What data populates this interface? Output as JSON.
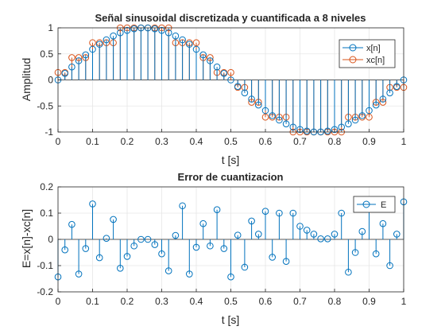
{
  "chart_data": [
    {
      "type": "stem",
      "title": "Señal sinusoidal discretizada y cuantificada a 8 niveles",
      "xlabel": "t [s]",
      "ylabel": "Amplitud",
      "xlim": [
        0,
        1
      ],
      "ylim": [
        -1,
        1
      ],
      "xticks": [
        "0",
        "0.1",
        "0.2",
        "0.3",
        "0.4",
        "0.5",
        "0.6",
        "0.7",
        "0.8",
        "0.9",
        "1"
      ],
      "yticks": [
        "-1",
        "-0.5",
        "0",
        "0.5",
        "1"
      ],
      "legend": "top-right",
      "x": [
        0,
        0.02,
        0.04,
        0.06,
        0.08,
        0.1,
        0.12,
        0.14,
        0.16,
        0.18,
        0.2,
        0.22,
        0.24,
        0.26,
        0.28,
        0.3,
        0.32,
        0.34,
        0.36,
        0.38,
        0.4,
        0.42,
        0.44,
        0.46,
        0.48,
        0.5,
        0.52,
        0.54,
        0.56,
        0.58,
        0.6,
        0.62,
        0.64,
        0.66,
        0.68,
        0.7,
        0.72,
        0.74,
        0.76,
        0.78,
        0.8,
        0.82,
        0.84,
        0.86,
        0.88,
        0.9,
        0.92,
        0.94,
        0.96,
        0.98,
        1.0
      ],
      "series": [
        {
          "name": "x[n]",
          "color": "#0072BD",
          "values": [
            0,
            0.125,
            0.249,
            0.368,
            0.482,
            0.588,
            0.685,
            0.771,
            0.844,
            0.905,
            0.951,
            0.982,
            0.998,
            0.998,
            0.982,
            0.951,
            0.905,
            0.844,
            0.771,
            0.685,
            0.588,
            0.482,
            0.368,
            0.249,
            0.125,
            0,
            -0.125,
            -0.249,
            -0.368,
            -0.482,
            -0.588,
            -0.685,
            -0.771,
            -0.844,
            -0.905,
            -0.951,
            -0.982,
            -0.998,
            -0.998,
            -0.982,
            -0.951,
            -0.905,
            -0.844,
            -0.771,
            -0.685,
            -0.588,
            -0.482,
            -0.368,
            -0.249,
            -0.125,
            0
          ]
        },
        {
          "name": "xc[n]",
          "color": "#D95319",
          "values": [
            0.143,
            0.143,
            0.429,
            0.429,
            0.429,
            0.714,
            0.714,
            0.714,
            0.714,
            1,
            1,
            1,
            1,
            1,
            1,
            1,
            1,
            0.714,
            0.714,
            0.714,
            0.714,
            0.429,
            0.429,
            0.143,
            0.143,
            0.143,
            -0.143,
            -0.143,
            -0.429,
            -0.429,
            -0.714,
            -0.714,
            -0.714,
            -0.714,
            -1,
            -1,
            -1,
            -1,
            -1,
            -1,
            -1,
            -1,
            -0.714,
            -0.714,
            -0.714,
            -0.714,
            -0.429,
            -0.429,
            -0.143,
            -0.143,
            -0.143
          ]
        }
      ]
    },
    {
      "type": "stem",
      "title": "Error de cuantizacion",
      "xlabel": "t [s]",
      "ylabel": "E=x[n]-xc[n]",
      "xlim": [
        0,
        1
      ],
      "ylim": [
        -0.2,
        0.2
      ],
      "xticks": [
        "0",
        "0.1",
        "0.2",
        "0.3",
        "0.4",
        "0.5",
        "0.6",
        "0.7",
        "0.8",
        "0.9",
        "1"
      ],
      "yticks": [
        "-0.2",
        "-0.1",
        "0",
        "0.1",
        "0.2"
      ],
      "legend": "top-right",
      "x": [
        0,
        0.02,
        0.04,
        0.06,
        0.08,
        0.1,
        0.12,
        0.14,
        0.16,
        0.18,
        0.2,
        0.22,
        0.24,
        0.26,
        0.28,
        0.3,
        0.32,
        0.34,
        0.36,
        0.38,
        0.4,
        0.42,
        0.44,
        0.46,
        0.48,
        0.5,
        0.52,
        0.54,
        0.56,
        0.58,
        0.6,
        0.62,
        0.64,
        0.66,
        0.68,
        0.7,
        0.72,
        0.74,
        0.76,
        0.78,
        0.8,
        0.82,
        0.84,
        0.86,
        0.88,
        0.9,
        0.92,
        0.94,
        0.96,
        0.98,
        1.0
      ],
      "series": [
        {
          "name": "E",
          "color": "#0072BD",
          "values": [
            -0.143,
            -0.04,
            0.057,
            -0.132,
            -0.035,
            0.135,
            -0.07,
            0.004,
            0.076,
            -0.11,
            -0.065,
            -0.025,
            0,
            0,
            -0.02,
            -0.055,
            -0.12,
            0.015,
            0.128,
            -0.132,
            -0.03,
            0.06,
            -0.025,
            0.113,
            -0.035,
            -0.143,
            0.016,
            -0.106,
            0.07,
            0.02,
            0.107,
            -0.068,
            0.1,
            -0.084,
            0.1,
            0.05,
            0.035,
            0.02,
            0.002,
            0.002,
            0.02,
            0.1,
            -0.125,
            -0.05,
            0.03,
            0.13,
            -0.055,
            0.06,
            -0.1,
            0.02,
            0.143
          ]
        }
      ]
    }
  ]
}
